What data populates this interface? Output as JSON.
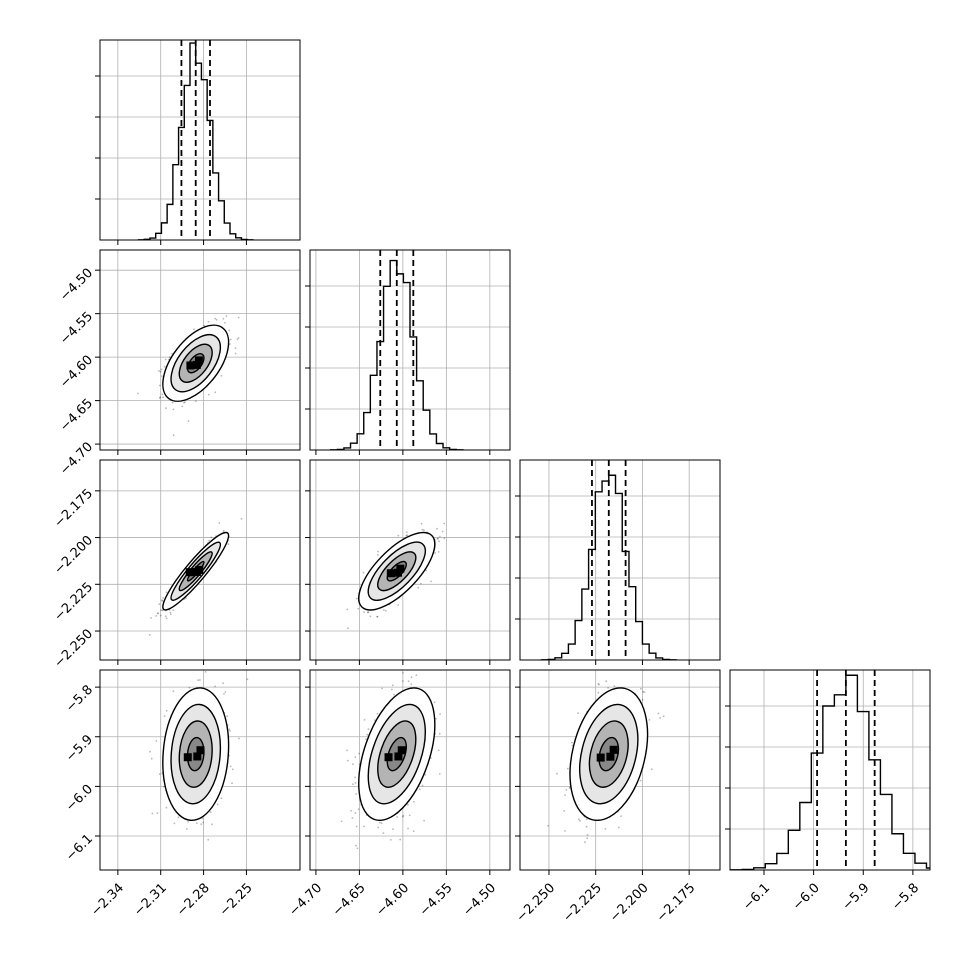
{
  "chart_data": {
    "type": "corner",
    "parameters": [
      {
        "mean": -2.2855,
        "sd": 0.01,
        "q16": -2.2955,
        "q50": -2.2855,
        "q84": -2.2755,
        "range": [
          -2.3525,
          -2.2125
        ],
        "ticks": [
          -2.34,
          -2.31,
          -2.28,
          -2.25
        ],
        "tick_labels": [
          "−2.34",
          "−2.31",
          "−2.28",
          "−2.25"
        ]
      },
      {
        "mean": -4.607,
        "sd": 0.019,
        "q16": -4.626,
        "q50": -4.607,
        "q84": -4.588,
        "range": [
          -4.7068,
          -4.4768
        ],
        "ticks": [
          -4.7,
          -4.65,
          -4.6,
          -4.55,
          -4.5
        ],
        "tick_labels": [
          "−4.70",
          "−4.65",
          "−4.60",
          "−4.55",
          "−4.50"
        ]
      },
      {
        "mean": -2.218,
        "sd": 0.009,
        "q16": -2.227,
        "q50": -2.218,
        "q84": -2.209,
        "range": [
          -2.2655,
          -2.1585
        ],
        "ticks": [
          -2.25,
          -2.225,
          -2.2,
          -2.175
        ],
        "tick_labels": [
          "−2.250",
          "−2.225",
          "−2.200",
          "−2.175"
        ]
      },
      {
        "mean": -5.935,
        "sd": 0.058,
        "q16": -5.993,
        "q50": -5.935,
        "q84": -5.877,
        "range": [
          -6.1685,
          -5.7655
        ],
        "ticks": [
          -6.1,
          -6.0,
          -5.9,
          -5.8
        ],
        "tick_labels": [
          "−6.1",
          "−6.0",
          "−5.9",
          "−5.8"
        ]
      }
    ],
    "correlations": [
      [
        1.0,
        0.55,
        0.92,
        0.12
      ],
      [
        0.55,
        1.0,
        0.7,
        0.45
      ],
      [
        0.92,
        0.7,
        1.0,
        0.3
      ],
      [
        0.12,
        0.45,
        0.3,
        1.0
      ]
    ],
    "histogram_bins": 20,
    "quantiles": [
      0.16,
      0.5,
      0.84
    ],
    "contour_levels_sigma": [
      0.5,
      1.0,
      1.5,
      2.0
    ],
    "grid": true,
    "xlabels": [
      "",
      "",
      "",
      ""
    ],
    "ylabels": [
      "",
      "",
      "",
      ""
    ],
    "colors": {
      "line": "#000000",
      "grid": "#b0b0b0",
      "points": "#000000",
      "fill_light": "#ffffff"
    }
  }
}
